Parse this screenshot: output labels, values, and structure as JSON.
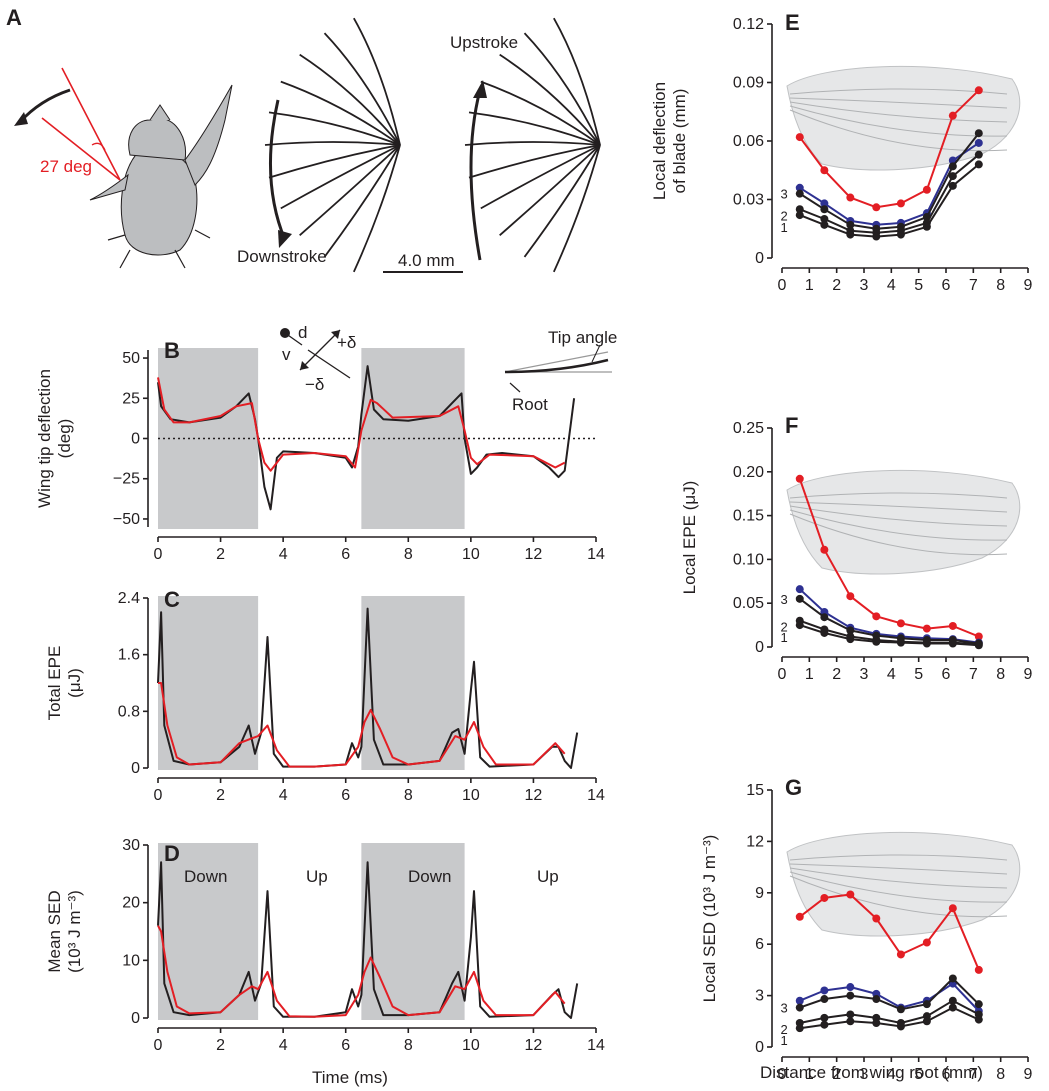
{
  "colors": {
    "black": "#231f20",
    "red": "#e31e24",
    "blue": "#2e3192",
    "shade": "#c8c9cb",
    "body": "#bcbec0"
  },
  "panels": {
    "A": {
      "letter": "A",
      "angle_label": "27 deg",
      "downstroke_label": "Downstroke",
      "upstroke_label": "Upstroke",
      "scale_label": "4.0 mm"
    },
    "B": {
      "letter": "B",
      "tip_angle_label": "Tip angle",
      "root_label": "Root",
      "d_label": "d",
      "v_label": "v",
      "plus_delta": "+δ",
      "minus_delta": "−δ"
    },
    "C": {
      "letter": "C"
    },
    "D": {
      "letter": "D",
      "phase_labels": [
        "Down",
        "Up",
        "Down",
        "Up"
      ],
      "xlabel": "Time (ms)"
    },
    "E": {
      "letter": "E"
    },
    "F": {
      "letter": "F"
    },
    "G": {
      "letter": "G",
      "xlabel": "Distance from wing root (mm)"
    }
  },
  "chart_data": [
    {
      "id": "B",
      "type": "line",
      "ylabel_lines": [
        "Wing tip deflection",
        "(deg)"
      ],
      "xlim": [
        0,
        14
      ],
      "ylim": [
        -55,
        55
      ],
      "xticks": [
        "0",
        "2",
        "4",
        "6",
        "8",
        "10",
        "12",
        "14"
      ],
      "yticks": [
        50,
        25,
        0,
        -25,
        -50
      ],
      "ytick_labels": [
        "50",
        "25",
        "0",
        "−25",
        "−50"
      ],
      "shaded_x": [
        [
          0,
          3.2
        ],
        [
          6.5,
          9.8
        ]
      ],
      "zero_line": true,
      "series": [
        {
          "color": "black",
          "x": [
            0,
            0.1,
            0.4,
            1,
            2,
            2.5,
            2.9,
            3.1,
            3.2,
            3.4,
            3.6,
            3.8,
            4,
            5,
            6,
            6.2,
            6.4,
            6.5,
            6.7,
            6.9,
            7.2,
            8,
            9,
            9.4,
            9.7,
            9.8,
            10,
            10.2,
            10.5,
            11,
            12,
            12.5,
            12.8,
            13,
            13.2,
            13.3
          ],
          "y": [
            35,
            20,
            12,
            10,
            13,
            20,
            28,
            12,
            0,
            -30,
            -44,
            -12,
            -8,
            -9,
            -12,
            -18,
            -5,
            15,
            45,
            18,
            12,
            11,
            14,
            22,
            28,
            0,
            -22,
            -18,
            -10,
            -9,
            -11,
            -18,
            -24,
            -20,
            10,
            25
          ]
        },
        {
          "color": "red",
          "x": [
            0,
            0.2,
            0.5,
            1,
            2,
            2.5,
            3,
            3.2,
            3.4,
            3.6,
            4,
            5,
            6,
            6.3,
            6.5,
            6.8,
            7,
            7.5,
            9,
            9.6,
            9.8,
            10,
            10.2,
            10.6,
            12,
            12.7,
            13
          ],
          "y": [
            38,
            18,
            10,
            10,
            14,
            20,
            22,
            0,
            -15,
            -20,
            -10,
            -9,
            -11,
            -18,
            5,
            24,
            22,
            13,
            14,
            20,
            5,
            -12,
            -16,
            -10,
            -11,
            -18,
            -15
          ]
        }
      ]
    },
    {
      "id": "C",
      "type": "line",
      "ylabel_lines": [
        "Total EPE",
        "(μJ)"
      ],
      "xlim": [
        0,
        14
      ],
      "ylim": [
        0,
        2.4
      ],
      "xticks": [
        "0",
        "2",
        "4",
        "6",
        "8",
        "10",
        "12",
        "14"
      ],
      "yticks": [
        2.4,
        1.6,
        0.8,
        0
      ],
      "ytick_labels": [
        "2.4",
        "1.6",
        "0.8",
        "0"
      ],
      "shaded_x": [
        [
          0,
          3.2
        ],
        [
          6.5,
          9.8
        ]
      ],
      "series": [
        {
          "color": "black",
          "x": [
            0,
            0.1,
            0.2,
            0.5,
            1,
            2,
            2.6,
            2.9,
            3.1,
            3.3,
            3.5,
            3.7,
            4,
            5,
            6,
            6.2,
            6.4,
            6.5,
            6.7,
            6.9,
            7.2,
            8,
            9,
            9.4,
            9.6,
            9.8,
            10,
            10.1,
            10.3,
            10.6,
            12,
            12.6,
            12.8,
            13.0,
            13.2,
            13.4
          ],
          "y": [
            1.2,
            2.2,
            0.6,
            0.1,
            0.05,
            0.08,
            0.3,
            0.6,
            0.2,
            0.5,
            1.85,
            0.2,
            0.02,
            0.02,
            0.05,
            0.35,
            0.15,
            0.3,
            2.25,
            0.4,
            0.05,
            0.05,
            0.1,
            0.5,
            0.55,
            0.2,
            1.1,
            1.5,
            0.15,
            0.02,
            0.05,
            0.3,
            0.3,
            0.1,
            0,
            0.5
          ]
        },
        {
          "color": "red",
          "x": [
            0,
            0.1,
            0.3,
            0.6,
            1,
            2,
            2.6,
            3,
            3.2,
            3.5,
            3.8,
            4.2,
            5,
            6,
            6.4,
            6.6,
            6.8,
            7.1,
            7.5,
            8,
            9,
            9.5,
            9.8,
            10.1,
            10.4,
            10.8,
            12,
            12.7,
            13
          ],
          "y": [
            1.2,
            1.2,
            0.6,
            0.15,
            0.05,
            0.08,
            0.35,
            0.42,
            0.45,
            0.6,
            0.25,
            0.02,
            0.02,
            0.05,
            0.3,
            0.65,
            0.82,
            0.55,
            0.15,
            0.05,
            0.1,
            0.45,
            0.4,
            0.65,
            0.3,
            0.05,
            0.05,
            0.35,
            0.2
          ]
        }
      ]
    },
    {
      "id": "D",
      "type": "line",
      "ylabel_lines": [
        "Mean SED",
        "(10³ J m⁻³)"
      ],
      "xlim": [
        0,
        14
      ],
      "ylim": [
        0,
        30
      ],
      "xticks": [
        "0",
        "2",
        "4",
        "6",
        "8",
        "10",
        "12",
        "14"
      ],
      "yticks": [
        30,
        20,
        10,
        0
      ],
      "ytick_labels": [
        "30",
        "20",
        "10",
        "0"
      ],
      "shaded_x": [
        [
          0,
          3.2
        ],
        [
          6.5,
          9.8
        ]
      ],
      "series": [
        {
          "color": "black",
          "x": [
            0,
            0.1,
            0.2,
            0.5,
            1,
            2,
            2.6,
            2.9,
            3.1,
            3.3,
            3.5,
            3.7,
            4,
            5,
            6,
            6.2,
            6.4,
            6.5,
            6.7,
            6.9,
            7.2,
            8,
            9,
            9.4,
            9.6,
            9.8,
            10,
            10.1,
            10.3,
            10.6,
            12,
            12.6,
            12.8,
            13.0,
            13.2,
            13.4
          ],
          "y": [
            16,
            27,
            6,
            1,
            0.5,
            1,
            4,
            8,
            3,
            6,
            22,
            2,
            0.2,
            0.2,
            1,
            5,
            2,
            4,
            27,
            5,
            0.5,
            0.5,
            1,
            6,
            8,
            3,
            14,
            22,
            2,
            0.2,
            0.5,
            4,
            5,
            1,
            0,
            6
          ]
        },
        {
          "color": "red",
          "x": [
            0,
            0.1,
            0.3,
            0.6,
            1,
            2,
            2.6,
            3,
            3.2,
            3.5,
            3.8,
            4.2,
            5,
            6,
            6.4,
            6.6,
            6.8,
            7.1,
            7.5,
            8,
            9,
            9.5,
            9.8,
            10.1,
            10.4,
            10.8,
            12,
            12.7,
            13
          ],
          "y": [
            16,
            15,
            8,
            2,
            0.8,
            1,
            4,
            5.5,
            5,
            8,
            3,
            0.3,
            0.2,
            0.5,
            4,
            8,
            10.5,
            7,
            2,
            0.5,
            1,
            5.5,
            5,
            8,
            3,
            0.5,
            0.5,
            4.5,
            2.5
          ]
        }
      ]
    },
    {
      "id": "E",
      "type": "line",
      "ylabel_lines": [
        "Local deflection",
        "of blade (mm)"
      ],
      "xlim": [
        0,
        9
      ],
      "ylim": [
        0,
        0.12
      ],
      "xticks": [
        "0",
        "1",
        "2",
        "3",
        "4",
        "5",
        "6",
        "7",
        "8",
        "9"
      ],
      "yticks": [
        0.12,
        0.09,
        0.06,
        0.03,
        0
      ],
      "ytick_labels": [
        "0.12",
        "0.09",
        "0.06",
        "0.03",
        "0"
      ],
      "series_labels": [
        "3",
        "2",
        "1"
      ],
      "series": [
        {
          "color": "red",
          "x": [
            0.65,
            1.55,
            2.5,
            3.45,
            4.35,
            5.3,
            6.25,
            7.2
          ],
          "y": [
            0.062,
            0.045,
            0.031,
            0.026,
            0.028,
            0.035,
            0.073,
            0.086
          ]
        },
        {
          "color": "blue",
          "x": [
            0.65,
            1.55,
            2.5,
            3.45,
            4.35,
            5.3,
            6.25,
            7.2
          ],
          "y": [
            0.036,
            0.028,
            0.019,
            0.017,
            0.018,
            0.023,
            0.05,
            0.059
          ]
        },
        {
          "color": "black",
          "x": [
            0.65,
            1.55,
            2.5,
            3.45,
            4.35,
            5.3,
            6.25,
            7.2
          ],
          "y": [
            0.033,
            0.025,
            0.017,
            0.015,
            0.016,
            0.021,
            0.047,
            0.064
          ]
        },
        {
          "color": "black",
          "x": [
            0.65,
            1.55,
            2.5,
            3.45,
            4.35,
            5.3,
            6.25,
            7.2
          ],
          "y": [
            0.025,
            0.02,
            0.014,
            0.013,
            0.014,
            0.018,
            0.042,
            0.053
          ]
        },
        {
          "color": "black",
          "x": [
            0.65,
            1.55,
            2.5,
            3.45,
            4.35,
            5.3,
            6.25,
            7.2
          ],
          "y": [
            0.022,
            0.017,
            0.012,
            0.011,
            0.012,
            0.016,
            0.037,
            0.048
          ]
        }
      ]
    },
    {
      "id": "F",
      "type": "line",
      "ylabel_lines": [
        "Local EPE (μJ)"
      ],
      "xlim": [
        0,
        9
      ],
      "ylim": [
        0,
        0.25
      ],
      "xticks": [
        "0",
        "1",
        "2",
        "3",
        "4",
        "5",
        "6",
        "7",
        "8",
        "9"
      ],
      "yticks": [
        0.25,
        0.2,
        0.15,
        0.1,
        0.05,
        0
      ],
      "ytick_labels": [
        "0.25",
        "0.20",
        "0.15",
        "0.10",
        "0.05",
        "0"
      ],
      "series_labels": [
        "3",
        "2",
        "1"
      ],
      "series": [
        {
          "color": "red",
          "x": [
            0.65,
            1.55,
            2.5,
            3.45,
            4.35,
            5.3,
            6.25,
            7.2
          ],
          "y": [
            0.192,
            0.111,
            0.058,
            0.035,
            0.027,
            0.021,
            0.024,
            0.012
          ]
        },
        {
          "color": "blue",
          "x": [
            0.65,
            1.55,
            2.5,
            3.45,
            4.35,
            5.3,
            6.25,
            7.2
          ],
          "y": [
            0.066,
            0.04,
            0.022,
            0.015,
            0.012,
            0.01,
            0.009,
            0.005
          ]
        },
        {
          "color": "black",
          "x": [
            0.65,
            1.55,
            2.5,
            3.45,
            4.35,
            5.3,
            6.25,
            7.2
          ],
          "y": [
            0.055,
            0.034,
            0.019,
            0.013,
            0.01,
            0.008,
            0.008,
            0.004
          ]
        },
        {
          "color": "black",
          "x": [
            0.65,
            1.55,
            2.5,
            3.45,
            4.35,
            5.3,
            6.25,
            7.2
          ],
          "y": [
            0.03,
            0.02,
            0.012,
            0.008,
            0.006,
            0.005,
            0.005,
            0.003
          ]
        },
        {
          "color": "black",
          "x": [
            0.65,
            1.55,
            2.5,
            3.45,
            4.35,
            5.3,
            6.25,
            7.2
          ],
          "y": [
            0.025,
            0.016,
            0.009,
            0.006,
            0.005,
            0.004,
            0.004,
            0.002
          ]
        }
      ]
    },
    {
      "id": "G",
      "type": "line",
      "ylabel_lines": [
        "Local SED (10³ J m⁻³)"
      ],
      "xlim": [
        0,
        9
      ],
      "ylim": [
        0,
        15
      ],
      "xticks": [
        "0",
        "1",
        "2",
        "3",
        "4",
        "5",
        "6",
        "7",
        "8",
        "9"
      ],
      "yticks": [
        15,
        12,
        9,
        6,
        3,
        0
      ],
      "ytick_labels": [
        "15",
        "12",
        "9",
        "6",
        "3",
        "0"
      ],
      "series_labels": [
        "3",
        "2",
        "1"
      ],
      "series": [
        {
          "color": "red",
          "x": [
            0.65,
            1.55,
            2.5,
            3.45,
            4.35,
            5.3,
            6.25,
            7.2
          ],
          "y": [
            7.6,
            8.7,
            8.9,
            7.5,
            5.4,
            6.1,
            8.1,
            4.5
          ]
        },
        {
          "color": "blue",
          "x": [
            0.65,
            1.55,
            2.5,
            3.45,
            4.35,
            5.3,
            6.25,
            7.2
          ],
          "y": [
            2.7,
            3.3,
            3.5,
            3.1,
            2.3,
            2.7,
            3.7,
            2.1
          ]
        },
        {
          "color": "black",
          "x": [
            0.65,
            1.55,
            2.5,
            3.45,
            4.35,
            5.3,
            6.25,
            7.2
          ],
          "y": [
            2.3,
            2.8,
            3.0,
            2.8,
            2.2,
            2.5,
            4.0,
            2.5
          ]
        },
        {
          "color": "black",
          "x": [
            0.65,
            1.55,
            2.5,
            3.45,
            4.35,
            5.3,
            6.25,
            7.2
          ],
          "y": [
            1.4,
            1.7,
            1.9,
            1.7,
            1.4,
            1.8,
            2.7,
            1.9
          ]
        },
        {
          "color": "black",
          "x": [
            0.65,
            1.55,
            2.5,
            3.45,
            4.35,
            5.3,
            6.25,
            7.2
          ],
          "y": [
            1.1,
            1.3,
            1.5,
            1.4,
            1.2,
            1.5,
            2.3,
            1.6
          ]
        }
      ]
    }
  ]
}
